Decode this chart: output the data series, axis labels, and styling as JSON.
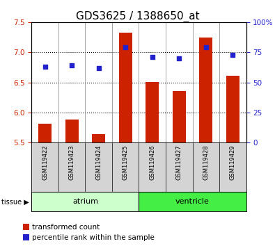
{
  "title": "GDS3625 / 1388650_at",
  "samples": [
    "GSM119422",
    "GSM119423",
    "GSM119424",
    "GSM119425",
    "GSM119426",
    "GSM119427",
    "GSM119428",
    "GSM119429"
  ],
  "transformed_counts": [
    5.82,
    5.88,
    5.64,
    7.32,
    6.51,
    6.36,
    7.24,
    6.61
  ],
  "percentile_ranks": [
    63,
    64,
    62,
    79,
    71,
    70,
    79,
    73
  ],
  "ylim_left": [
    5.5,
    7.5
  ],
  "ylim_right": [
    0,
    100
  ],
  "yticks_left": [
    5.5,
    6.0,
    6.5,
    7.0,
    7.5
  ],
  "yticks_right": [
    0,
    25,
    50,
    75,
    100
  ],
  "bar_color": "#cc2200",
  "dot_color": "#2222cc",
  "bar_bottom": 5.5,
  "groups": [
    {
      "label": "atrium",
      "start": 0,
      "end": 4,
      "color": "#ccffcc"
    },
    {
      "label": "ventricle",
      "start": 4,
      "end": 8,
      "color": "#44ee44"
    }
  ],
  "sample_label_bg": "#d4d4d4",
  "grid_color": "#000000",
  "background_color": "#ffffff",
  "plot_bg": "#ffffff",
  "tick_label_color_left": "#cc2200",
  "tick_label_color_right": "#2222cc",
  "title_fontsize": 11,
  "axis_fontsize": 7.5,
  "legend_fontsize": 8,
  "sample_fontsize": 6
}
